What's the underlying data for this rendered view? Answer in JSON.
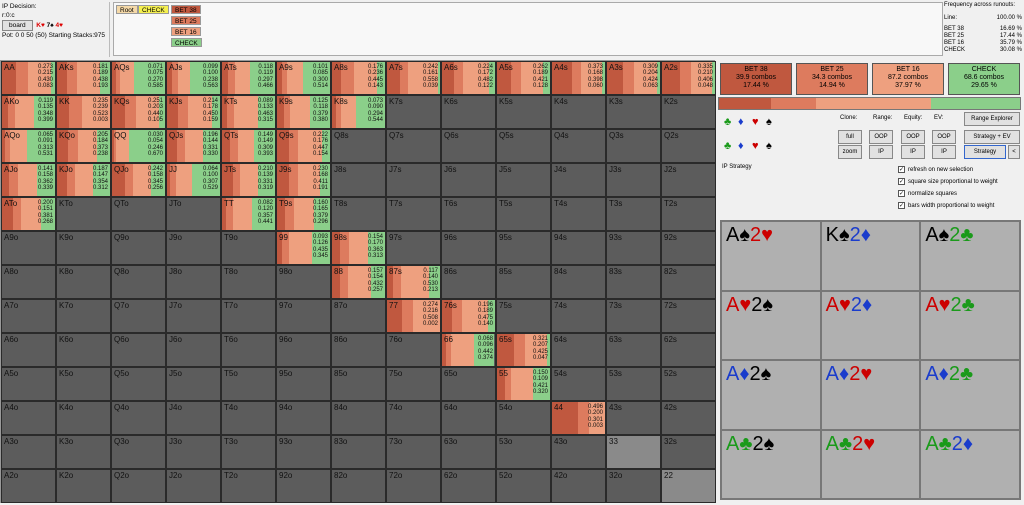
{
  "info": {
    "title": "IP Decision:",
    "line": "r:0:c",
    "board_button": "board",
    "board_cards": [
      {
        "rank": "K",
        "suit": "♥",
        "color": "red"
      },
      {
        "rank": "7",
        "suit": "♠",
        "color": "black"
      },
      {
        "rank": "4",
        "suit": "♥",
        "color": "red"
      }
    ],
    "pot": "Pot: 0 0 50 (50) Starting Stacks:975"
  },
  "tree": {
    "root": "Root",
    "check": "CHECK",
    "bet38": "BET 38",
    "bet25": "BET 25",
    "bet16": "BET 16",
    "check2": "CHECK"
  },
  "freq": {
    "title": "Frequency across runouts:",
    "line_label": "Line:",
    "line_value": "100.00 %",
    "rows": [
      [
        "BET 38",
        "16.69 %"
      ],
      [
        "BET 25",
        "17.44 %"
      ],
      [
        "BET 16",
        "35.79 %"
      ],
      [
        "CHECK",
        "30.08 %"
      ]
    ]
  },
  "colors": {
    "bet38": "#c0583f",
    "bet25": "#dd7b5e",
    "bet16": "#eea07f",
    "check": "#8bcf8a"
  },
  "grid": [
    [
      {
        "l": "AA",
        "v": [
          "0.273",
          "0.215",
          "0.430",
          "0.083"
        ]
      },
      {
        "l": "AKs",
        "v": [
          "0.181",
          "0.189",
          "0.438",
          "0.193"
        ]
      },
      {
        "l": "AQs",
        "v": [
          "0.071",
          "0.075",
          "0.270",
          "0.585"
        ]
      },
      {
        "l": "AJs",
        "v": [
          "0.099",
          "0.100",
          "0.238",
          "0.563"
        ]
      },
      {
        "l": "ATs",
        "v": [
          "0.118",
          "0.119",
          "0.297",
          "0.466"
        ]
      },
      {
        "l": "A9s",
        "v": [
          "0.101",
          "0.085",
          "0.300",
          "0.514"
        ]
      },
      {
        "l": "A8s",
        "v": [
          "0.176",
          "0.236",
          "0.445",
          "0.143"
        ]
      },
      {
        "l": "A7s",
        "v": [
          "0.242",
          "0.161",
          "0.558",
          "0.039"
        ]
      },
      {
        "l": "A6s",
        "v": [
          "0.224",
          "0.172",
          "0.482",
          "0.122"
        ]
      },
      {
        "l": "A5s",
        "v": [
          "0.262",
          "0.189",
          "0.421",
          "0.128"
        ]
      },
      {
        "l": "A4s",
        "v": [
          "0.373",
          "0.168",
          "0.398",
          "0.060"
        ]
      },
      {
        "l": "A3s",
        "v": [
          "0.309",
          "0.204",
          "0.424",
          "0.063"
        ]
      },
      {
        "l": "A2s",
        "v": [
          "0.335",
          "0.210",
          "0.406",
          "0.048"
        ]
      }
    ],
    [
      {
        "l": "AKo",
        "v": [
          "0.119",
          "0.135",
          "0.348",
          "0.399"
        ]
      },
      {
        "l": "KK",
        "v": [
          "0.235",
          "0.239",
          "0.523",
          "0.003"
        ]
      },
      {
        "l": "KQs",
        "v": [
          "0.251",
          "0.203",
          "0.440",
          "0.105"
        ]
      },
      {
        "l": "KJs",
        "v": [
          "0.214",
          "0.178",
          "0.450",
          "0.159"
        ]
      },
      {
        "l": "KTs",
        "v": [
          "0.089",
          "0.133",
          "0.463",
          "0.315"
        ]
      },
      {
        "l": "K9s",
        "v": [
          "0.125",
          "0.118",
          "0.379",
          "0.380"
        ]
      },
      {
        "l": "K8s",
        "v": [
          "0.073",
          "0.090",
          "0.294",
          "0.544"
        ]
      },
      {
        "l": "K7s"
      },
      {
        "l": "K6s"
      },
      {
        "l": "K5s"
      },
      {
        "l": "K4s"
      },
      {
        "l": "K3s"
      },
      {
        "l": "K2s"
      }
    ],
    [
      {
        "l": "AQo",
        "v": [
          "0.065",
          "0.091",
          "0.313",
          "0.531"
        ]
      },
      {
        "l": "KQo",
        "v": [
          "0.205",
          "0.184",
          "0.373",
          "0.238"
        ]
      },
      {
        "l": "QQ",
        "v": [
          "0.030",
          "0.054",
          "0.246",
          "0.670"
        ]
      },
      {
        "l": "QJs",
        "v": [
          "0.196",
          "0.144",
          "0.331",
          "0.330"
        ]
      },
      {
        "l": "QTs",
        "v": [
          "0.149",
          "0.149",
          "0.309",
          "0.393"
        ]
      },
      {
        "l": "Q9s",
        "v": [
          "0.222",
          "0.176",
          "0.447",
          "0.154"
        ]
      },
      {
        "l": "Q8s"
      },
      {
        "l": "Q7s"
      },
      {
        "l": "Q6s"
      },
      {
        "l": "Q5s"
      },
      {
        "l": "Q4s"
      },
      {
        "l": "Q3s"
      },
      {
        "l": "Q2s"
      }
    ],
    [
      {
        "l": "AJo",
        "v": [
          "0.141",
          "0.158",
          "0.362",
          "0.339"
        ]
      },
      {
        "l": "KJo",
        "v": [
          "0.187",
          "0.147",
          "0.354",
          "0.312"
        ]
      },
      {
        "l": "QJo",
        "v": [
          "0.242",
          "0.158",
          "0.345",
          "0.256"
        ]
      },
      {
        "l": "JJ",
        "v": [
          "0.064",
          "0.100",
          "0.307",
          "0.529"
        ]
      },
      {
        "l": "JTs",
        "v": [
          "0.210",
          "0.139",
          "0.331",
          "0.319"
        ]
      },
      {
        "l": "J9s",
        "v": [
          "0.230",
          "0.168",
          "0.411",
          "0.191"
        ]
      },
      {
        "l": "J8s"
      },
      {
        "l": "J7s"
      },
      {
        "l": "J6s"
      },
      {
        "l": "J5s"
      },
      {
        "l": "J4s"
      },
      {
        "l": "J3s"
      },
      {
        "l": "J2s"
      }
    ],
    [
      {
        "l": "ATo",
        "v": [
          "0.200",
          "0.151",
          "0.381",
          "0.268"
        ]
      },
      {
        "l": "KTo"
      },
      {
        "l": "QTo"
      },
      {
        "l": "JTo"
      },
      {
        "l": "TT",
        "v": [
          "0.082",
          "0.120",
          "0.357",
          "0.441"
        ]
      },
      {
        "l": "T9s",
        "v": [
          "0.160",
          "0.165",
          "0.379",
          "0.296"
        ]
      },
      {
        "l": "T8s"
      },
      {
        "l": "T7s"
      },
      {
        "l": "T6s"
      },
      {
        "l": "T5s"
      },
      {
        "l": "T4s"
      },
      {
        "l": "T3s"
      },
      {
        "l": "T2s"
      }
    ],
    [
      {
        "l": "A9o"
      },
      {
        "l": "K9o"
      },
      {
        "l": "Q9o"
      },
      {
        "l": "J9o"
      },
      {
        "l": "T9o"
      },
      {
        "l": "99",
        "v": [
          "0.093",
          "0.126",
          "0.435",
          "0.345"
        ]
      },
      {
        "l": "98s",
        "v": [
          "0.154",
          "0.170",
          "0.363",
          "0.313"
        ]
      },
      {
        "l": "97s"
      },
      {
        "l": "96s"
      },
      {
        "l": "95s"
      },
      {
        "l": "94s"
      },
      {
        "l": "93s"
      },
      {
        "l": "92s"
      }
    ],
    [
      {
        "l": "A8o"
      },
      {
        "l": "K8o"
      },
      {
        "l": "Q8o"
      },
      {
        "l": "J8o"
      },
      {
        "l": "T8o"
      },
      {
        "l": "98o"
      },
      {
        "l": "88",
        "v": [
          "0.157",
          "0.154",
          "0.432",
          "0.257"
        ]
      },
      {
        "l": "87s",
        "v": [
          "0.117",
          "0.140",
          "0.530",
          "0.213"
        ]
      },
      {
        "l": "86s"
      },
      {
        "l": "85s"
      },
      {
        "l": "84s"
      },
      {
        "l": "83s"
      },
      {
        "l": "82s"
      }
    ],
    [
      {
        "l": "A7o"
      },
      {
        "l": "K7o"
      },
      {
        "l": "Q7o"
      },
      {
        "l": "J7o"
      },
      {
        "l": "T7o"
      },
      {
        "l": "97o"
      },
      {
        "l": "87o"
      },
      {
        "l": "77",
        "v": [
          "0.274",
          "0.216",
          "0.508",
          "0.002"
        ]
      },
      {
        "l": "76s",
        "v": [
          "0.196",
          "0.189",
          "0.475",
          "0.140"
        ]
      },
      {
        "l": "75s"
      },
      {
        "l": "74s"
      },
      {
        "l": "73s"
      },
      {
        "l": "72s"
      }
    ],
    [
      {
        "l": "A6o"
      },
      {
        "l": "K6o"
      },
      {
        "l": "Q6o"
      },
      {
        "l": "J6o"
      },
      {
        "l": "T6o"
      },
      {
        "l": "96o"
      },
      {
        "l": "86o"
      },
      {
        "l": "76o"
      },
      {
        "l": "66",
        "v": [
          "0.068",
          "0.096",
          "0.442",
          "0.374"
        ]
      },
      {
        "l": "65s",
        "v": [
          "0.321",
          "0.207",
          "0.425",
          "0.047"
        ]
      },
      {
        "l": "64s"
      },
      {
        "l": "63s"
      },
      {
        "l": "62s"
      }
    ],
    [
      {
        "l": "A5o"
      },
      {
        "l": "K5o"
      },
      {
        "l": "Q5o"
      },
      {
        "l": "J5o"
      },
      {
        "l": "T5o"
      },
      {
        "l": "95o"
      },
      {
        "l": "85o"
      },
      {
        "l": "75o"
      },
      {
        "l": "65o"
      },
      {
        "l": "55",
        "v": [
          "0.150",
          "0.109",
          "0.421",
          "0.320"
        ]
      },
      {
        "l": "54s"
      },
      {
        "l": "53s"
      },
      {
        "l": "52s"
      }
    ],
    [
      {
        "l": "A4o"
      },
      {
        "l": "K4o"
      },
      {
        "l": "Q4o"
      },
      {
        "l": "J4o"
      },
      {
        "l": "T4o"
      },
      {
        "l": "94o"
      },
      {
        "l": "84o"
      },
      {
        "l": "74o"
      },
      {
        "l": "64o"
      },
      {
        "l": "54o"
      },
      {
        "l": "44",
        "v": [
          "0.496",
          "0.200",
          "0.301",
          "0.003"
        ]
      },
      {
        "l": "43s"
      },
      {
        "l": "42s"
      }
    ],
    [
      {
        "l": "A3o"
      },
      {
        "l": "K3o"
      },
      {
        "l": "Q3o"
      },
      {
        "l": "J3o"
      },
      {
        "l": "T3o"
      },
      {
        "l": "93o"
      },
      {
        "l": "83o"
      },
      {
        "l": "73o"
      },
      {
        "l": "63o"
      },
      {
        "l": "53o"
      },
      {
        "l": "43o"
      },
      {
        "l": "33",
        "g": true
      },
      {
        "l": "32s"
      }
    ],
    [
      {
        "l": "A2o"
      },
      {
        "l": "K2o"
      },
      {
        "l": "Q2o"
      },
      {
        "l": "J2o"
      },
      {
        "l": "T2o"
      },
      {
        "l": "92o"
      },
      {
        "l": "82o"
      },
      {
        "l": "72o"
      },
      {
        "l": "62o"
      },
      {
        "l": "52o"
      },
      {
        "l": "42o"
      },
      {
        "l": "32o"
      },
      {
        "l": "22",
        "g": true
      }
    ]
  ],
  "actions": [
    {
      "name": "BET 38",
      "combos": "39.9 combos",
      "pct": "17.44 %",
      "color": "#c0583f",
      "freq": 0.1744
    },
    {
      "name": "BET 25",
      "combos": "34.3 combos",
      "pct": "14.94 %",
      "color": "#dd7b5e",
      "freq": 0.1494
    },
    {
      "name": "BET 16",
      "combos": "87.2 combos",
      "pct": "37.97 %",
      "color": "#eea07f",
      "freq": 0.3797
    },
    {
      "name": "CHECK",
      "combos": "68.6 combos",
      "pct": "29.65 %",
      "color": "#8bcf8a",
      "freq": 0.2965
    }
  ],
  "controls": {
    "clone": "Clone:",
    "range": "Range:",
    "equity": "Equity:",
    "ev": "EV:",
    "range_explorer": "Range Explorer",
    "full": "full",
    "zoom": "zoom",
    "oop1": "OOP",
    "ip1": "IP",
    "oop2": "OOP",
    "ip2": "IP",
    "oop3": "OOP",
    "ip3": "IP",
    "strategy_ev": "Strategy + EV",
    "strategy": "Strategy",
    "back": "<",
    "ip_strategy": "IP Strategy",
    "checks": [
      "refresh on new selection",
      "square size proportional to weight",
      "normalize squares",
      "bars width proportional to weight"
    ]
  },
  "combos": [
    [
      [
        "A",
        "♠",
        "b"
      ],
      [
        "2",
        "♥",
        "r"
      ]
    ],
    [
      [
        "K",
        "♠",
        "b"
      ],
      [
        "2",
        "♦",
        "bl"
      ]
    ],
    [
      [
        "A",
        "♠",
        "b"
      ],
      [
        "2",
        "♣",
        "g"
      ]
    ],
    [
      [
        "A",
        "♥",
        "r"
      ],
      [
        "2",
        "♠",
        "b"
      ]
    ],
    [
      [
        "A",
        "♥",
        "r"
      ],
      [
        "2",
        "♦",
        "bl"
      ]
    ],
    [
      [
        "A",
        "♥",
        "r"
      ],
      [
        "2",
        "♣",
        "g"
      ]
    ],
    [
      [
        "A",
        "♦",
        "bl"
      ],
      [
        "2",
        "♠",
        "b"
      ]
    ],
    [
      [
        "A",
        "♦",
        "bl"
      ],
      [
        "2",
        "♥",
        "r"
      ]
    ],
    [
      [
        "A",
        "♦",
        "bl"
      ],
      [
        "2",
        "♣",
        "g"
      ]
    ],
    [
      [
        "A",
        "♣",
        "g"
      ],
      [
        "2",
        "♠",
        "b"
      ]
    ],
    [
      [
        "A",
        "♣",
        "g"
      ],
      [
        "2",
        "♥",
        "r"
      ]
    ],
    [
      [
        "A",
        "♣",
        "g"
      ],
      [
        "2",
        "♦",
        "bl"
      ]
    ]
  ]
}
